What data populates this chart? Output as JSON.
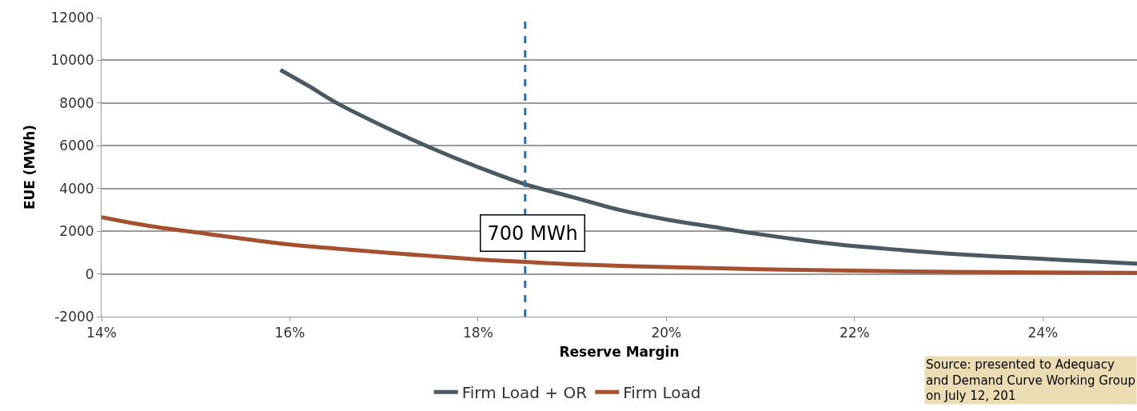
{
  "chart_data": {
    "type": "line",
    "xlabel": "Reserve Margin",
    "ylabel": "EUE (MWh)",
    "series": [
      {
        "name": "Firm Load + OR",
        "color": "#4a5a62",
        "x": [
          15.9,
          16.2,
          16.5,
          17.0,
          17.5,
          18.0,
          18.5,
          19.0,
          19.5,
          20.0,
          20.5,
          21.0,
          21.5,
          22.0,
          22.5,
          23.0,
          23.5,
          24.0,
          24.5,
          25.0
        ],
        "values": [
          9550,
          8800,
          8000,
          6900,
          5900,
          5000,
          4200,
          3600,
          3000,
          2550,
          2200,
          1850,
          1550,
          1300,
          1120,
          950,
          820,
          700,
          590,
          480
        ]
      },
      {
        "name": "Firm Load",
        "color": "#a5502f",
        "x": [
          14.0,
          14.5,
          15.0,
          15.5,
          16.0,
          16.5,
          17.0,
          17.5,
          18.0,
          18.5,
          19.0,
          19.5,
          20.0,
          21.0,
          22.0,
          23.0,
          24.0,
          25.0
        ],
        "values": [
          2650,
          2250,
          1950,
          1650,
          1380,
          1180,
          1000,
          840,
          680,
          560,
          450,
          380,
          320,
          220,
          150,
          100,
          70,
          50
        ]
      }
    ],
    "xlim": [
      14,
      25
    ],
    "xticks": [
      {
        "value": 14,
        "label": "14%"
      },
      {
        "value": 16,
        "label": "16%"
      },
      {
        "value": 18,
        "label": "18%"
      },
      {
        "value": 20,
        "label": "20%"
      },
      {
        "value": 22,
        "label": "22%"
      },
      {
        "value": 24,
        "label": "24%"
      }
    ],
    "ylim": [
      -2000,
      12000
    ],
    "yticks": [
      -2000,
      0,
      2000,
      4000,
      6000,
      8000,
      10000,
      12000
    ],
    "grid": "y",
    "legend": "bottom",
    "line_style": "solid",
    "marker": "none",
    "ref_lines": [
      {
        "axis": "x",
        "value": 18.5,
        "color": "#1f6fc0",
        "line_style": "dashed"
      }
    ],
    "annotations": [
      "700 MWh",
      "Source: presented to Adequacy and Demand Curve Working Group on July 12, 201"
    ]
  }
}
